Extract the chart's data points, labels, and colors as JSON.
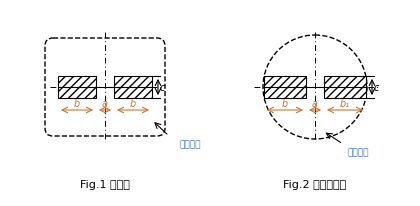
{
  "fig_width": 4.2,
  "fig_height": 2.07,
  "dpi": 100,
  "bg_color": "#ffffff",
  "line_color": "#000000",
  "hatch_color": "#555555",
  "dim_color": "#c8783c",
  "label_color": "#4472c4",
  "fig1_label": "Fig.1 贴片型",
  "fig2_label": "Fig.2 铸模贴片型",
  "annotation": "产品外形",
  "dim_a": "a",
  "dim_b": "b",
  "dim_b1": "b₁",
  "dim_c": "c"
}
